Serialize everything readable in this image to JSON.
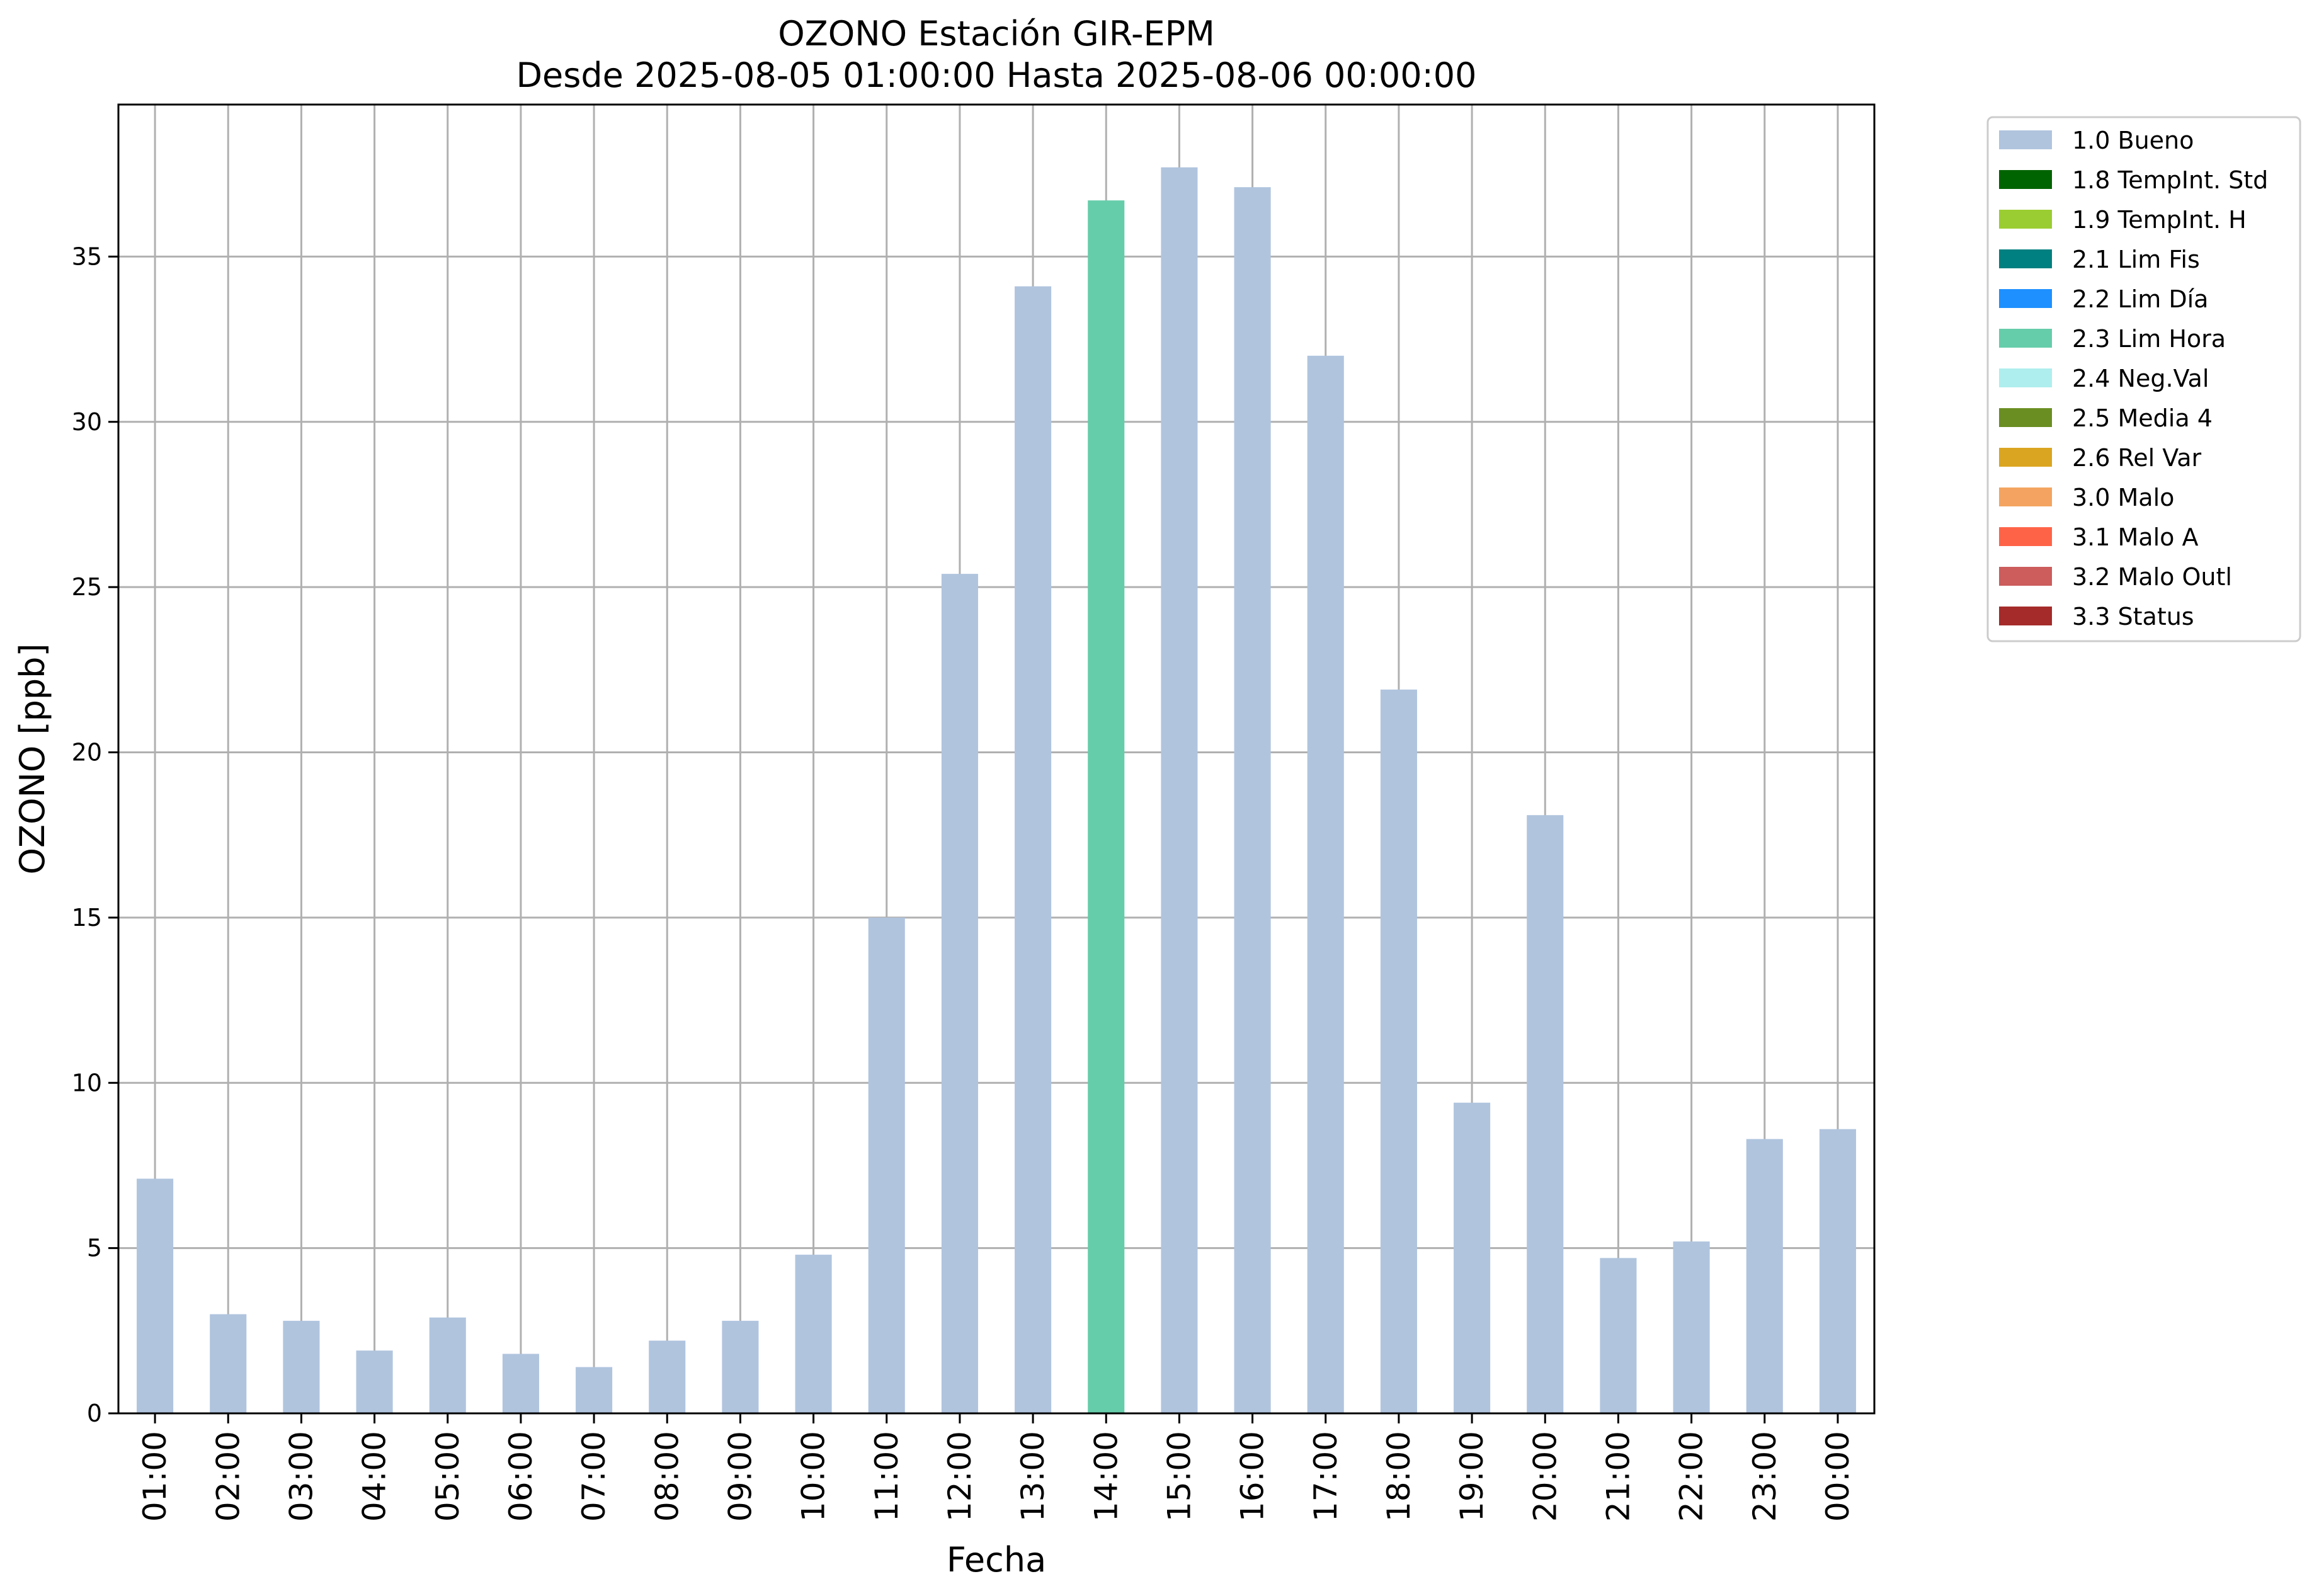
{
  "chart_data": {
    "type": "bar",
    "title": "OZONO Estación GIR-EPM",
    "subtitle": "Desde 2025-08-05 01:00:00 Hasta 2025-08-06 00:00:00",
    "xlabel": "Fecha",
    "ylabel": "OZONO [ppb]",
    "ylim": [
      0,
      39.6
    ],
    "yticks": [
      0,
      5,
      10,
      15,
      20,
      25,
      30,
      35
    ],
    "grid": true,
    "legend_position": "outside-top-right",
    "categories": [
      "01:00",
      "02:00",
      "03:00",
      "04:00",
      "05:00",
      "06:00",
      "07:00",
      "08:00",
      "09:00",
      "10:00",
      "11:00",
      "12:00",
      "13:00",
      "14:00",
      "15:00",
      "16:00",
      "17:00",
      "18:00",
      "19:00",
      "20:00",
      "21:00",
      "22:00",
      "23:00",
      "00:00"
    ],
    "values": [
      7.1,
      3.0,
      2.8,
      1.9,
      2.9,
      1.8,
      1.4,
      2.2,
      2.8,
      4.8,
      15.0,
      25.4,
      34.1,
      36.7,
      37.7,
      37.1,
      32.0,
      21.9,
      9.4,
      18.1,
      4.7,
      5.2,
      8.3,
      8.6
    ],
    "flags": [
      "1.0 Bueno",
      "1.0 Bueno",
      "1.0 Bueno",
      "1.0 Bueno",
      "1.0 Bueno",
      "1.0 Bueno",
      "1.0 Bueno",
      "1.0 Bueno",
      "1.0 Bueno",
      "1.0 Bueno",
      "1.0 Bueno",
      "1.0 Bueno",
      "1.0 Bueno",
      "2.3 Lim Hora",
      "1.0 Bueno",
      "1.0 Bueno",
      "1.0 Bueno",
      "1.0 Bueno",
      "1.0 Bueno",
      "1.0 Bueno",
      "1.0 Bueno",
      "1.0 Bueno",
      "1.0 Bueno",
      "1.0 Bueno"
    ],
    "legend": [
      {
        "label": "1.0 Bueno",
        "color": "#b0c4de"
      },
      {
        "label": "1.8 TempInt. Std",
        "color": "#006400"
      },
      {
        "label": "1.9 TempInt. H",
        "color": "#9acd32"
      },
      {
        "label": "2.1 Lim Fis",
        "color": "#008080"
      },
      {
        "label": "2.2 Lim Día",
        "color": "#1e90ff"
      },
      {
        "label": "2.3 Lim Hora",
        "color": "#66cdaa"
      },
      {
        "label": "2.4 Neg.Val",
        "color": "#afeeee"
      },
      {
        "label": "2.5 Media 4",
        "color": "#6b8e23"
      },
      {
        "label": "2.6 Rel Var",
        "color": "#daa520"
      },
      {
        "label": "3.0 Malo",
        "color": "#f4a460"
      },
      {
        "label": "3.1 Malo A",
        "color": "#ff6347"
      },
      {
        "label": "3.2 Malo Outl",
        "color": "#cd5c5c"
      },
      {
        "label": "3.3 Status",
        "color": "#a52a2a"
      }
    ]
  }
}
